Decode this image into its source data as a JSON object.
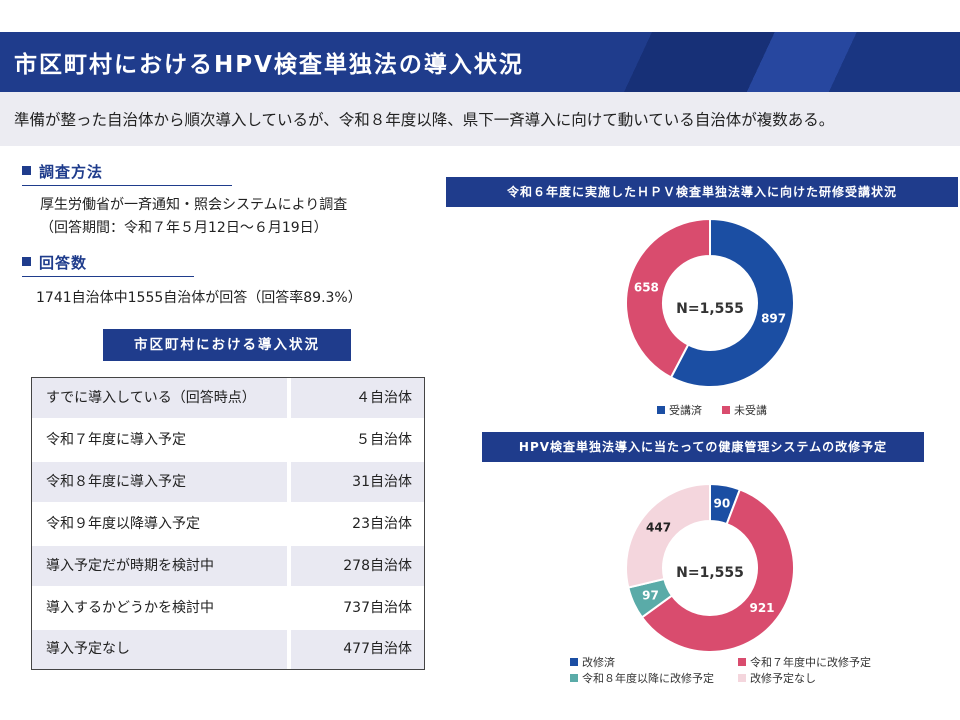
{
  "header": {
    "title": "市区町村におけるHPV検査単独法の導入状況"
  },
  "summary": "準備が整った自治体から順次導入しているが、令和８年度以降、県下一斉導入に向けて動いている自治体が複数ある。",
  "survey": {
    "heading": "調査方法",
    "line1": "厚生労働省が一斉通知・照会システムにより調査",
    "line2": "（回答期間：令和７年５月12日～６月19日）"
  },
  "responses": {
    "heading": "回答数",
    "text": "1741自治体中1555自治体が回答（回答率89.3%）"
  },
  "table": {
    "title": "市区町村における導入状況",
    "rows": [
      {
        "label": "すでに導入している（回答時点）",
        "value": "４自治体"
      },
      {
        "label": "令和７年度に導入予定",
        "value": "５自治体"
      },
      {
        "label": "令和８年度に導入予定",
        "value": "31自治体"
      },
      {
        "label": "令和９年度以降導入予定",
        "value": "23自治体"
      },
      {
        "label": "導入予定だが時期を検討中",
        "value": "278自治体"
      },
      {
        "label": "導入するかどうかを検討中",
        "value": "737自治体"
      },
      {
        "label": "導入予定なし",
        "value": "477自治体"
      }
    ]
  },
  "chart_data": [
    {
      "type": "pie",
      "donut": true,
      "title": "令和６年度に実施したＨＰＶ検査単独法導入に向けた研修受講状況",
      "center_label": "N=1,555",
      "categories": [
        "受講済",
        "未受講"
      ],
      "values": [
        897,
        658
      ],
      "colors": [
        "#1b4ea3",
        "#d94c6e"
      ]
    },
    {
      "type": "pie",
      "donut": true,
      "title": "HPV検査単独法導入に当たっての健康管理システムの改修予定",
      "center_label": "N=1,555",
      "categories": [
        "改修済",
        "令和７年度中に改修予定",
        "令和８年度以降に改修予定",
        "改修予定なし"
      ],
      "values": [
        90,
        921,
        97,
        447
      ],
      "colors": [
        "#1b4ea3",
        "#d94c6e",
        "#5aaba8",
        "#f4d6dd"
      ]
    }
  ]
}
